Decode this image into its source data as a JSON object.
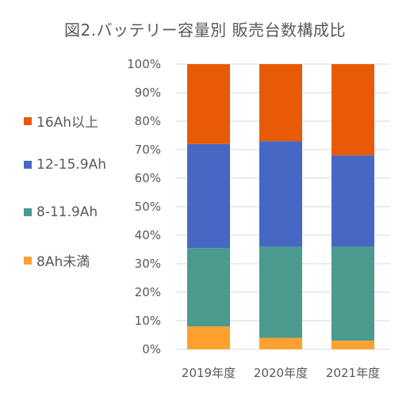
{
  "chart_data": {
    "type": "bar",
    "stacked": true,
    "title": "図2.バッテリー容量別 販売台数構成比",
    "categories": [
      "2019年度",
      "2020年度",
      "2021年度"
    ],
    "y_ticks": [
      "0%",
      "10%",
      "20%",
      "30%",
      "40%",
      "50%",
      "60%",
      "70%",
      "80%",
      "90%",
      "100%"
    ],
    "ylim": [
      0,
      100
    ],
    "grid": true,
    "legend_position": "left",
    "series": [
      {
        "name": "8Ah未満",
        "color": "#FFA12E",
        "values": [
          8,
          4,
          3
        ]
      },
      {
        "name": "8-11.9Ah",
        "color": "#4A9A8E",
        "values": [
          27.5,
          32,
          33
        ]
      },
      {
        "name": "12-15.9Ah",
        "color": "#4668C4",
        "values": [
          36.5,
          37,
          32
        ]
      },
      {
        "name": "16Ah以上",
        "color": "#E85A06",
        "values": [
          28,
          27,
          32
        ]
      }
    ]
  }
}
